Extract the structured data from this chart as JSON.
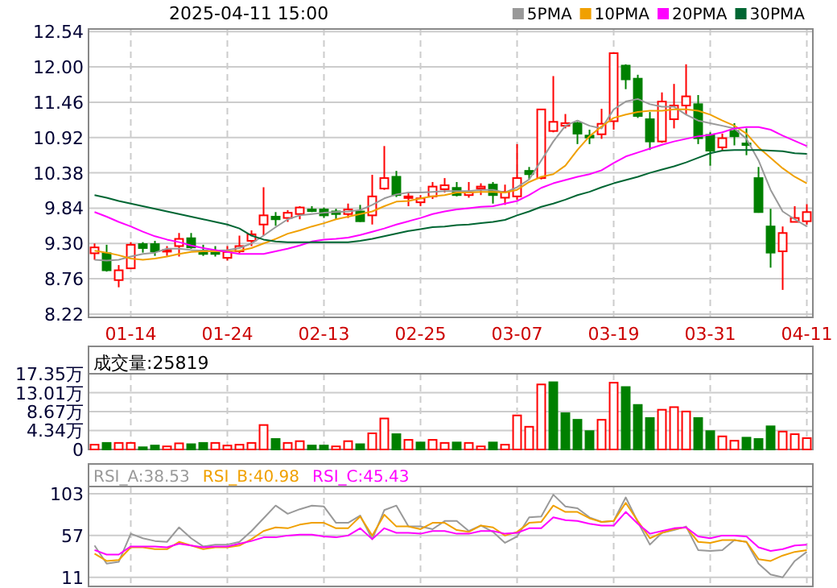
{
  "chart_data": [
    {
      "type": "candlestick",
      "title": "2025-04-11 15:00",
      "categories": [
        null,
        null,
        null,
        "01-14",
        null,
        null,
        null,
        null,
        null,
        null,
        null,
        "01-24",
        null,
        null,
        null,
        null,
        null,
        null,
        null,
        "02-13",
        null,
        null,
        null,
        null,
        null,
        null,
        null,
        "02-25",
        null,
        null,
        null,
        null,
        null,
        null,
        null,
        "03-07",
        null,
        null,
        null,
        null,
        null,
        null,
        null,
        "03-19",
        null,
        null,
        null,
        null,
        null,
        null,
        null,
        "03-31",
        null,
        null,
        null,
        null,
        null,
        null,
        null,
        "04-11"
      ],
      "ohlc": [
        [
          9.15,
          9.3,
          9.05,
          9.24
        ],
        [
          9.15,
          9.28,
          8.87,
          8.89
        ],
        [
          8.74,
          8.97,
          8.63,
          8.89
        ],
        [
          8.92,
          9.32,
          8.92,
          9.28
        ],
        [
          9.29,
          9.32,
          9.16,
          9.23
        ],
        [
          9.29,
          9.34,
          9.11,
          9.18
        ],
        [
          9.18,
          9.26,
          9.11,
          9.2
        ],
        [
          9.26,
          9.46,
          9.1,
          9.37
        ],
        [
          9.38,
          9.46,
          9.22,
          9.24
        ],
        [
          9.19,
          9.28,
          9.11,
          9.14
        ],
        [
          9.19,
          9.26,
          9.1,
          9.14
        ],
        [
          9.08,
          9.26,
          9.04,
          9.17
        ],
        [
          9.18,
          9.42,
          9.15,
          9.26
        ],
        [
          9.34,
          9.5,
          9.26,
          9.44
        ],
        [
          9.59,
          10.16,
          9.42,
          9.73
        ],
        [
          9.71,
          9.78,
          9.57,
          9.67
        ],
        [
          9.69,
          9.81,
          9.63,
          9.77
        ],
        [
          9.75,
          9.87,
          9.67,
          9.85
        ],
        [
          9.82,
          9.87,
          9.78,
          9.81
        ],
        [
          9.82,
          9.85,
          9.69,
          9.73
        ],
        [
          9.79,
          9.83,
          9.67,
          9.75
        ],
        [
          9.75,
          9.91,
          9.69,
          9.82
        ],
        [
          9.79,
          9.89,
          9.63,
          9.64
        ],
        [
          9.73,
          10.35,
          9.59,
          10.02
        ],
        [
          10.14,
          10.79,
          10.12,
          10.3
        ],
        [
          10.32,
          10.41,
          10.01,
          10.04
        ],
        [
          10.0,
          10.08,
          9.87,
          10.02
        ],
        [
          9.93,
          10.04,
          9.87,
          9.99
        ],
        [
          10.02,
          10.24,
          9.98,
          10.17
        ],
        [
          10.13,
          10.3,
          10.08,
          10.19
        ],
        [
          10.15,
          10.24,
          10.02,
          10.04
        ],
        [
          10.04,
          10.24,
          10.0,
          10.08
        ],
        [
          10.14,
          10.22,
          10.04,
          10.17
        ],
        [
          10.2,
          10.24,
          9.91,
          10.04
        ],
        [
          10.0,
          10.2,
          9.89,
          10.09
        ],
        [
          10.02,
          10.82,
          9.97,
          10.3
        ],
        [
          10.41,
          10.47,
          10.28,
          10.36
        ],
        [
          10.3,
          11.36,
          10.28,
          11.35
        ],
        [
          11.02,
          11.86,
          11.0,
          11.16
        ],
        [
          11.1,
          11.28,
          11.06,
          11.14
        ],
        [
          11.14,
          11.16,
          10.82,
          10.98
        ],
        [
          10.95,
          11.04,
          10.82,
          10.92
        ],
        [
          10.97,
          11.36,
          10.9,
          11.13
        ],
        [
          11.17,
          12.21,
          11.04,
          12.21
        ],
        [
          12.02,
          12.04,
          11.66,
          11.81
        ],
        [
          11.82,
          11.88,
          11.22,
          11.25
        ],
        [
          11.2,
          11.31,
          10.73,
          10.86
        ],
        [
          10.86,
          11.61,
          10.84,
          11.47
        ],
        [
          11.2,
          11.74,
          11.06,
          11.41
        ],
        [
          11.41,
          12.04,
          11.27,
          11.55
        ],
        [
          11.43,
          11.57,
          10.82,
          10.91
        ],
        [
          10.96,
          11.0,
          10.49,
          10.72
        ],
        [
          10.77,
          10.98,
          10.73,
          10.91
        ],
        [
          11.02,
          11.14,
          10.8,
          10.94
        ],
        [
          10.83,
          11.06,
          10.65,
          10.82
        ],
        [
          10.3,
          10.47,
          9.77,
          9.78
        ],
        [
          9.56,
          9.83,
          8.93,
          9.16
        ],
        [
          9.18,
          9.56,
          8.59,
          9.46
        ],
        [
          9.63,
          9.87,
          9.63,
          9.69
        ],
        [
          9.64,
          9.9,
          9.59,
          9.78
        ]
      ],
      "colors": [
        "#ff0000",
        "#008000",
        "#ff0000",
        "#ff0000",
        "#008000",
        "#008000",
        "#ff0000",
        "#ff0000",
        "#008000",
        "#008000",
        "#008000",
        "#ff0000",
        "#ff0000",
        "#ff0000",
        "#ff0000",
        "#008000",
        "#ff0000",
        "#ff0000",
        "#008000",
        "#008000",
        "#008000",
        "#ff0000",
        "#008000",
        "#ff0000",
        "#ff0000",
        "#008000",
        "#ff0000",
        "#ff0000",
        "#ff0000",
        "#ff0000",
        "#008000",
        "#ff0000",
        "#ff0000",
        "#008000",
        "#ff0000",
        "#ff0000",
        "#008000",
        "#ff0000",
        "#ff0000",
        "#ff0000",
        "#008000",
        "#008000",
        "#ff0000",
        "#ff0000",
        "#008000",
        "#008000",
        "#008000",
        "#ff0000",
        "#ff0000",
        "#ff0000",
        "#008000",
        "#008000",
        "#ff0000",
        "#008000",
        "#008000",
        "#008000",
        "#008000",
        "#ff0000",
        "#ff0000",
        "#ff0000"
      ],
      "series": [
        {
          "name": "5PMA",
          "type": "line",
          "color": "#999999",
          "values": [
            9.05,
            9.04,
            9.05,
            9.1,
            9.14,
            9.16,
            9.22,
            9.22,
            9.2,
            9.19,
            9.19,
            9.2,
            9.23,
            9.3,
            9.42,
            9.55,
            9.67,
            9.73,
            9.75,
            9.77,
            9.78,
            9.79,
            9.81,
            9.89,
            9.99,
            10.05,
            10.08,
            10.08,
            10.09,
            10.1,
            10.1,
            10.1,
            10.12,
            10.12,
            10.08,
            10.16,
            10.28,
            10.57,
            10.86,
            11.1,
            11.18,
            11.1,
            11.06,
            11.35,
            11.47,
            11.51,
            11.43,
            11.39,
            11.39,
            11.27,
            11.18,
            11.14,
            11.1,
            11.06,
            10.9,
            10.57,
            10.12,
            9.79,
            9.67,
            9.56
          ]
        },
        {
          "name": "10PMA",
          "type": "line",
          "color": "#f0a000",
          "values": [
            9.19,
            9.16,
            9.12,
            9.07,
            9.05,
            9.07,
            9.1,
            9.14,
            9.17,
            9.18,
            9.18,
            9.18,
            9.19,
            9.23,
            9.3,
            9.37,
            9.45,
            9.5,
            9.56,
            9.61,
            9.67,
            9.71,
            9.75,
            9.79,
            9.87,
            9.94,
            9.95,
            9.99,
            10.02,
            10.04,
            10.08,
            10.08,
            10.09,
            10.09,
            10.08,
            10.12,
            10.24,
            10.32,
            10.36,
            10.49,
            10.73,
            10.94,
            11.09,
            11.22,
            11.27,
            11.31,
            11.33,
            11.33,
            11.35,
            11.35,
            11.33,
            11.27,
            11.18,
            11.1,
            10.98,
            10.77,
            10.61,
            10.45,
            10.32,
            10.22
          ]
        },
        {
          "name": "20PMA",
          "type": "line",
          "color": "#ff00ff",
          "values": [
            9.78,
            9.71,
            9.63,
            9.56,
            9.48,
            9.41,
            9.36,
            9.32,
            9.27,
            9.23,
            9.2,
            9.17,
            9.14,
            9.14,
            9.14,
            9.18,
            9.22,
            9.27,
            9.33,
            9.36,
            9.37,
            9.39,
            9.43,
            9.48,
            9.53,
            9.59,
            9.64,
            9.69,
            9.75,
            9.79,
            9.82,
            9.84,
            9.86,
            9.87,
            9.91,
            9.95,
            10.04,
            10.15,
            10.22,
            10.27,
            10.32,
            10.36,
            10.42,
            10.53,
            10.63,
            10.69,
            10.75,
            10.81,
            10.86,
            10.9,
            10.94,
            10.96,
            11.0,
            11.06,
            11.08,
            11.08,
            11.04,
            10.95,
            10.87,
            10.79
          ]
        },
        {
          "name": "30PMA",
          "type": "line",
          "color": "#006633",
          "values": [
            10.04,
            10.0,
            9.95,
            9.91,
            9.87,
            9.83,
            9.79,
            9.75,
            9.71,
            9.67,
            9.63,
            9.59,
            9.53,
            9.42,
            9.36,
            9.33,
            9.32,
            9.32,
            9.32,
            9.32,
            9.32,
            9.32,
            9.34,
            9.37,
            9.41,
            9.45,
            9.49,
            9.52,
            9.55,
            9.56,
            9.58,
            9.59,
            9.61,
            9.63,
            9.66,
            9.73,
            9.79,
            9.86,
            9.91,
            9.97,
            10.04,
            10.09,
            10.16,
            10.22,
            10.27,
            10.32,
            10.38,
            10.43,
            10.48,
            10.54,
            10.61,
            10.68,
            10.72,
            10.73,
            10.73,
            10.73,
            10.72,
            10.71,
            10.68,
            10.67
          ]
        }
      ],
      "ylim": [
        8.17,
        12.58
      ],
      "yticks": [
        {
          "value": 8.22,
          "label": "8.22"
        },
        {
          "value": 8.76,
          "label": "8.76"
        },
        {
          "value": 9.3,
          "label": "9.30"
        },
        {
          "value": 9.84,
          "label": "9.84"
        },
        {
          "value": 10.38,
          "label": "10.38"
        },
        {
          "value": 10.92,
          "label": "10.92"
        },
        {
          "value": 11.46,
          "label": "11.46"
        },
        {
          "value": 12.0,
          "label": "12.00"
        },
        {
          "value": 12.54,
          "label": "12.54"
        }
      ],
      "grid": true,
      "legend": "top right"
    },
    {
      "type": "bar",
      "title": "成交量:25819",
      "categories": [
        null,
        null,
        null,
        null,
        null,
        null,
        null,
        null,
        null,
        null,
        null,
        null,
        null,
        null,
        null,
        null,
        null,
        null,
        null,
        null,
        null,
        null,
        null,
        null,
        null,
        null,
        null,
        null,
        null,
        null,
        null,
        null,
        null,
        null,
        null,
        null,
        null,
        null,
        null,
        null,
        null,
        null,
        null,
        null,
        null,
        null,
        null,
        null,
        null,
        null,
        null,
        null,
        null,
        null,
        null,
        null,
        null,
        null,
        null,
        null
      ],
      "values": [
        1.1,
        1.5,
        1.5,
        1.5,
        0.5,
        0.9,
        0.7,
        1.4,
        1.2,
        1.5,
        1.5,
        0.9,
        1.1,
        1.5,
        5.6,
        2.4,
        1.5,
        1.9,
        0.9,
        0.9,
        0.7,
        1.9,
        1.2,
        3.7,
        7.1,
        3.5,
        2.2,
        1.6,
        2.2,
        1.5,
        1.6,
        1.5,
        0.7,
        1.6,
        1.1,
        7.8,
        5.2,
        14.9,
        15.4,
        8.3,
        6.8,
        4.2,
        6.8,
        15.3,
        14.3,
        10.2,
        7.2,
        9.1,
        9.7,
        8.7,
        7.2,
        4.2,
        3.0,
        2.0,
        2.7,
        2.4,
        5.3,
        4.1,
        3.5,
        2.6
      ],
      "colors": [
        "#ff0000",
        "#008000",
        "#ff0000",
        "#ff0000",
        "#008000",
        "#008000",
        "#ff0000",
        "#ff0000",
        "#008000",
        "#008000",
        "#ff0000",
        "#ff0000",
        "#ff0000",
        "#ff0000",
        "#ff0000",
        "#008000",
        "#ff0000",
        "#ff0000",
        "#008000",
        "#008000",
        "#ff0000",
        "#ff0000",
        "#008000",
        "#ff0000",
        "#ff0000",
        "#008000",
        "#ff0000",
        "#008000",
        "#ff0000",
        "#ff0000",
        "#008000",
        "#ff0000",
        "#ff0000",
        "#008000",
        "#ff0000",
        "#ff0000",
        "#ff0000",
        "#ff0000",
        "#008000",
        "#008000",
        "#008000",
        "#008000",
        "#ff0000",
        "#ff0000",
        "#008000",
        "#008000",
        "#008000",
        "#ff0000",
        "#ff0000",
        "#ff0000",
        "#008000",
        "#008000",
        "#ff0000",
        "#ff0000",
        "#008000",
        "#008000",
        "#008000",
        "#ff0000",
        "#ff0000",
        "#ff0000"
      ],
      "ylim": [
        0,
        17.35
      ],
      "yticks": [
        0,
        {
          "value": 4.34,
          "label": "4.34万"
        },
        {
          "value": 8.67,
          "label": "8.67万"
        },
        {
          "value": 13.01,
          "label": "13.01万"
        },
        {
          "value": 17.35,
          "label": "17.35万"
        }
      ],
      "grid": true,
      "tick_labels": "y"
    },
    {
      "type": "line",
      "categories": [
        null,
        null,
        null,
        null,
        null,
        null,
        null,
        null,
        null,
        null,
        null,
        null,
        null,
        null,
        null,
        null,
        null,
        null,
        null,
        null,
        null,
        null,
        null,
        null,
        null,
        null,
        null,
        null,
        null,
        null,
        null,
        null,
        null,
        null,
        null,
        null,
        null,
        null,
        null,
        null,
        null,
        null,
        null,
        null,
        null,
        null,
        null,
        null,
        null,
        null,
        null,
        null,
        null,
        null,
        null,
        null,
        null,
        null,
        null,
        null
      ],
      "series": [
        {
          "name": "RSI_A:38.53",
          "color": "#999999",
          "values": [
            46,
            26,
            28,
            59,
            54,
            51,
            50,
            66,
            54,
            45,
            47,
            47,
            50,
            62,
            76,
            90,
            81,
            86,
            90,
            89,
            71,
            71,
            79,
            53,
            85,
            90,
            67,
            67,
            64,
            73,
            73,
            62,
            68,
            61,
            49,
            56,
            77,
            78,
            102,
            89,
            87,
            77,
            72,
            73,
            99,
            72,
            47,
            60,
            63,
            67,
            41,
            40,
            41,
            52,
            50,
            26,
            14,
            11,
            29,
            39
          ]
        },
        {
          "name": "RSI_B:40.98",
          "color": "#f0a000",
          "values": [
            37,
            29,
            30,
            44,
            44,
            42,
            42,
            50,
            46,
            42,
            44,
            44,
            46,
            53,
            62,
            66,
            65,
            69,
            71,
            71,
            65,
            65,
            78,
            57,
            80,
            67,
            67,
            64,
            71,
            71,
            63,
            61,
            68,
            66,
            57,
            61,
            71,
            72,
            90,
            83,
            83,
            76,
            72,
            73,
            93,
            73,
            54,
            60,
            64,
            66,
            50,
            49,
            52,
            52,
            50,
            31,
            29,
            35,
            39,
            41
          ]
        },
        {
          "name": "RSI_C:45.43",
          "color": "#ff00ff",
          "values": [
            41,
            36,
            36,
            45,
            45,
            45,
            44,
            48,
            46,
            44,
            45,
            45,
            48,
            51,
            55,
            55,
            57,
            58,
            58,
            56,
            55,
            57,
            65,
            53,
            65,
            60,
            60,
            59,
            62,
            62,
            59,
            59,
            62,
            62,
            59,
            60,
            65,
            65,
            77,
            74,
            73,
            70,
            68,
            68,
            83,
            70,
            59,
            62,
            65,
            66,
            56,
            54,
            57,
            57,
            56,
            44,
            40,
            42,
            46,
            47
          ]
        }
      ],
      "ylim": [
        1,
        111
      ],
      "yticks": [
        11,
        57,
        103
      ],
      "grid": true,
      "legend": "top left",
      "tick_labels": "y"
    }
  ]
}
